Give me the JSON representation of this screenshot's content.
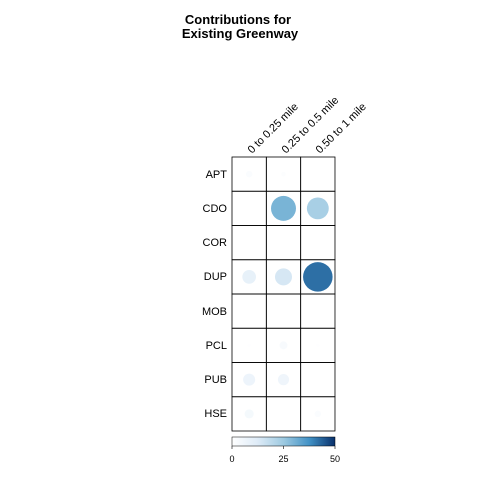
{
  "chart_data": {
    "type": "heatmap",
    "title_lines": [
      "Contributions for",
      "Existing Greenway"
    ],
    "columns": [
      "0 to 0.25 mile",
      "0.25 to 0.5 mile",
      "0.50 to 1 mile"
    ],
    "rows": [
      "APT",
      "CDO",
      "COR",
      "DUP",
      "MOB",
      "PCL",
      "PUB",
      "HSE"
    ],
    "values": [
      [
        2,
        1,
        null
      ],
      [
        null,
        30,
        23
      ],
      [
        null,
        null,
        null
      ],
      [
        9,
        14,
        42
      ],
      [
        null,
        null,
        null
      ],
      [
        0.5,
        3,
        0.5
      ],
      [
        7,
        6,
        null
      ],
      [
        4,
        null,
        2
      ]
    ],
    "colorbar": {
      "min": 0,
      "max": 50,
      "ticks": [
        0,
        25,
        50
      ],
      "colors": [
        "#ffffff",
        "#deebf7",
        "#9ecae1",
        "#4292c6",
        "#08306b"
      ]
    },
    "max_value": 50
  }
}
